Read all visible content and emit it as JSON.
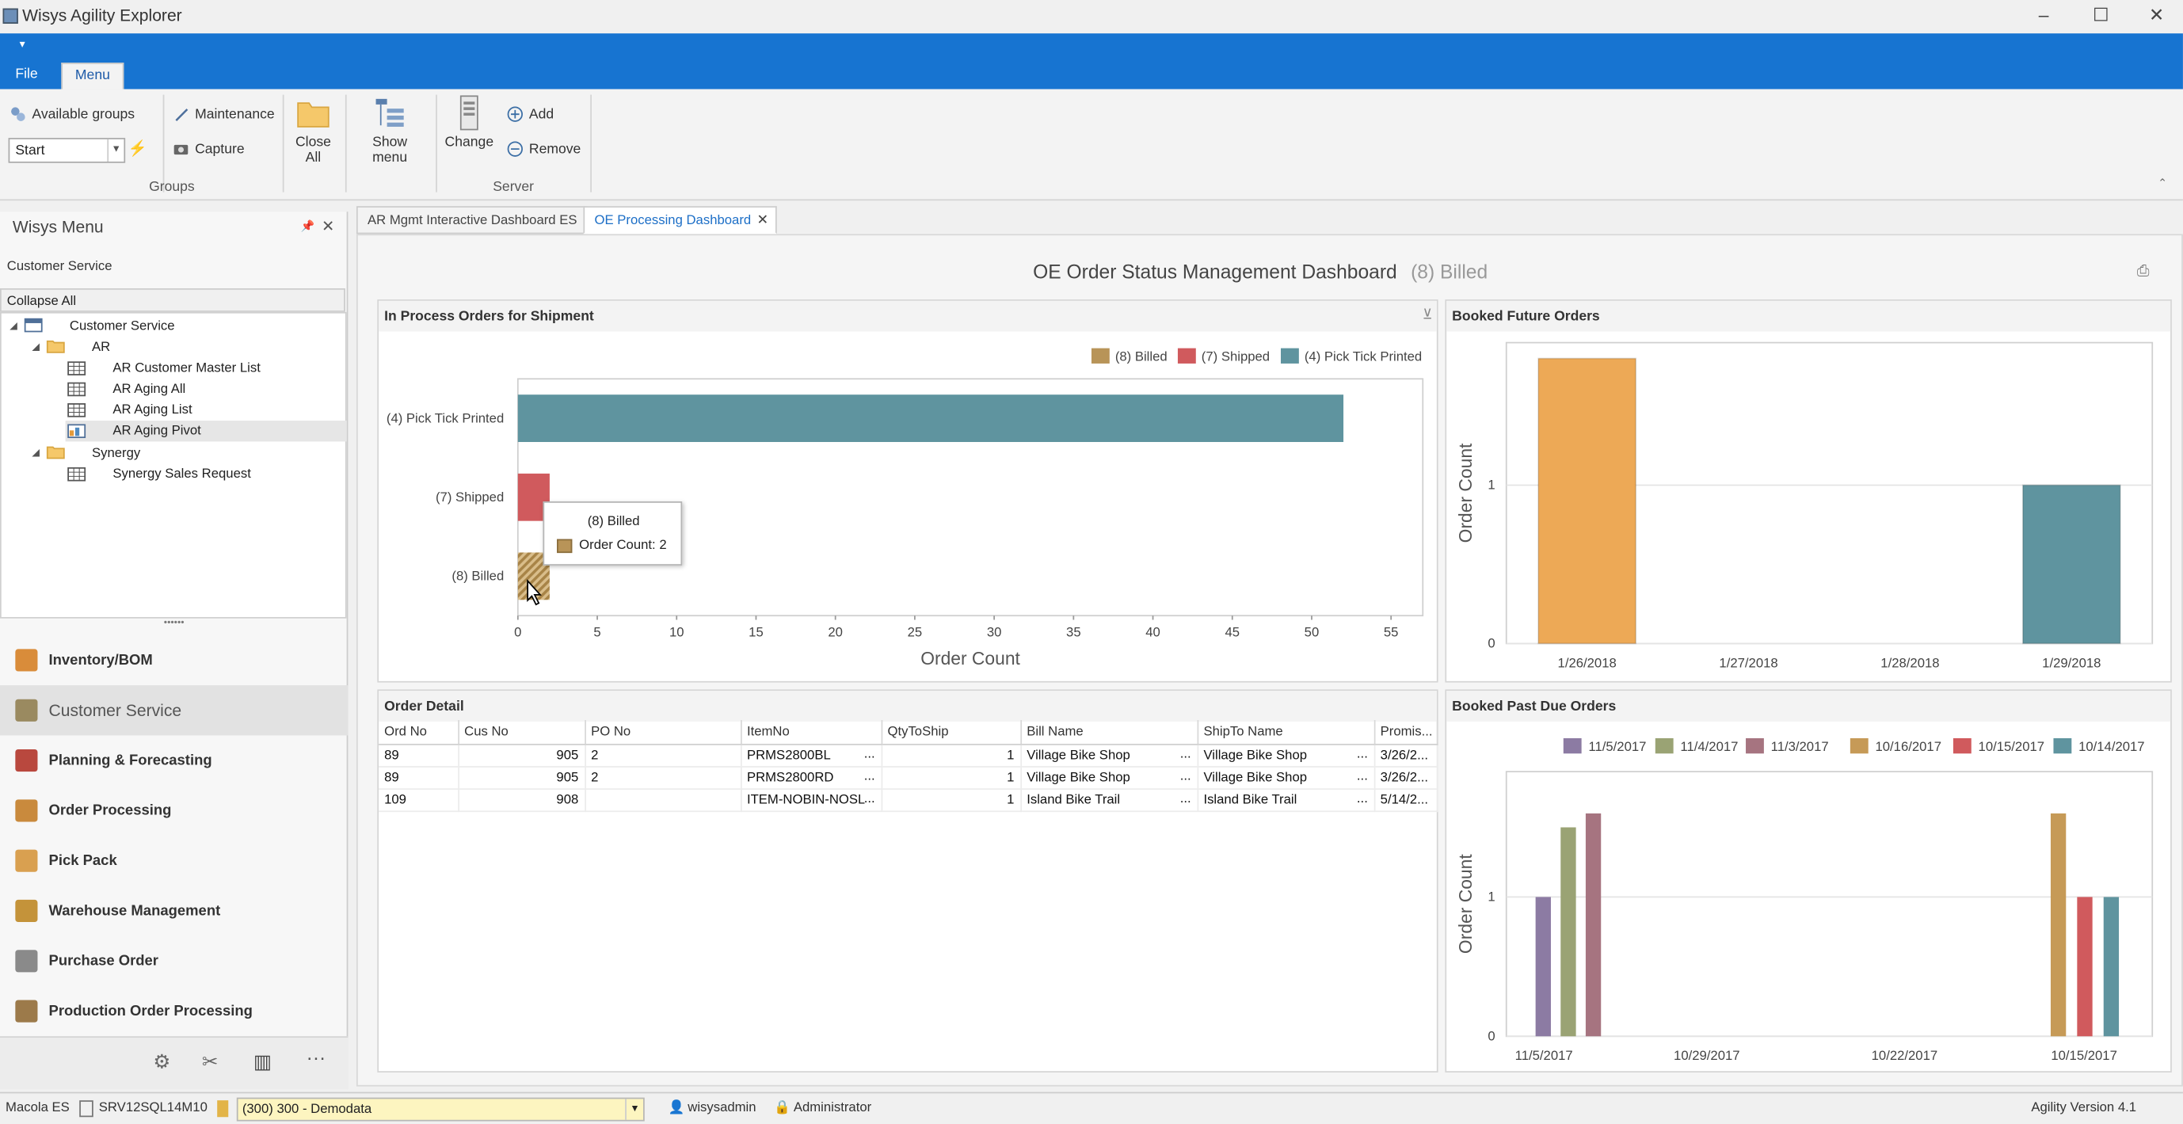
{
  "window": {
    "title": "Wisys Agility Explorer",
    "minimize": "–",
    "maximize": "☐",
    "close": "✕"
  },
  "ribbon": {
    "qat": "▾",
    "tabs": [
      "File",
      "Menu"
    ],
    "available_groups": "Available groups",
    "start_combo": "Start",
    "maintenance": "Maintenance",
    "capture": "Capture",
    "close_all": [
      "Close",
      "All"
    ],
    "show_menu": "Show menu",
    "change": "Change",
    "add": "Add",
    "remove": "Remove",
    "group_groups": "Groups",
    "group_server": "Server"
  },
  "wisys_menu": {
    "title": "Wisys Menu",
    "section": "Customer Service",
    "collapse_all": "Collapse All",
    "tree": [
      "Customer Service",
      "AR",
      "AR Customer Master List",
      "AR Aging All",
      "AR Aging List",
      "AR Aging Pivot",
      "Synergy",
      "Synergy Sales Request"
    ],
    "splitter": "••••••",
    "nav": [
      "Inventory/BOM",
      "Customer Service",
      "Planning & Forecasting",
      "Order Processing",
      "Pick Pack",
      "Warehouse Management",
      "Purchase Order",
      "Production Order Processing"
    ],
    "more": "···"
  },
  "doc_tabs": [
    "AR Mgmt Interactive Dashboard ES",
    "OE Processing Dashboard"
  ],
  "dashboard": {
    "title": "OE Order Status Management Dashboard",
    "filter": "(8) Billed"
  },
  "panels": {
    "in_process": "In Process Orders for Shipment",
    "booked_future": "Booked Future Orders",
    "order_detail": "Order Detail",
    "booked_past_due": "Booked Past Due Orders"
  },
  "chart_data": [
    {
      "type": "bar",
      "orientation": "horizontal",
      "categories": [
        "(4) Pick Tick Printed",
        "(7) Shipped",
        "(8) Billed"
      ],
      "values": [
        52,
        2,
        2
      ],
      "colors": [
        "#5f949f",
        "#d05a5d",
        "#b89458"
      ],
      "legend": [
        "(8) Billed",
        "(7) Shipped",
        "(4) Pick Tick Printed"
      ],
      "xlabel": "Order Count",
      "xlim": [
        0,
        57
      ],
      "xticks": [
        "0",
        "5",
        "10",
        "15",
        "20",
        "25",
        "30",
        "35",
        "40",
        "45",
        "50",
        "55"
      ],
      "tooltip": {
        "title": "(8) Billed",
        "text": "Order Count: 2"
      }
    },
    {
      "type": "bar",
      "categories": [
        "1/26/2018",
        "1/27/2018",
        "1/28/2018",
        "1/29/2018"
      ],
      "values": [
        1.8,
        0,
        0,
        1
      ],
      "colors": [
        "#eda956",
        "",
        "",
        "#5f949f"
      ],
      "ylabel": "Order Count",
      "yticks": [
        "0",
        "1"
      ],
      "ylim": [
        0,
        1.9
      ]
    },
    {
      "type": "bar",
      "legend": [
        "11/5/2017",
        "11/4/2017",
        "11/3/2017",
        "10/16/2017",
        "10/15/2017",
        "10/14/2017"
      ],
      "colors": [
        "#8c7ba3",
        "#9aa374",
        "#a67480",
        "#c69a57",
        "#d05a5d",
        "#5f949f"
      ],
      "values": [
        1,
        1.5,
        1.6,
        1.6,
        1,
        1
      ],
      "xticks": [
        "11/5/2017",
        "10/29/2017",
        "10/22/2017",
        "10/15/2017"
      ],
      "ylabel": "Order Count",
      "yticks": [
        "0",
        "1"
      ],
      "ylim": [
        0,
        1.9
      ]
    }
  ],
  "order_detail": {
    "columns": [
      "Ord No",
      "Cus No",
      "PO No",
      "ItemNo",
      "QtyToShip",
      "Bill Name",
      "ShipTo Name",
      "Promis..."
    ],
    "rows": [
      [
        "89",
        "905",
        "2",
        "PRMS2800BL",
        "1",
        "Village Bike Shop",
        "Village Bike Shop",
        "3/26/2..."
      ],
      [
        "89",
        "905",
        "2",
        "PRMS2800RD",
        "1",
        "Village Bike Shop",
        "Village Bike Shop",
        "3/26/2..."
      ],
      [
        "109",
        "908",
        "",
        "ITEM-NOBIN-NOSL",
        "1",
        "Island Bike Trail",
        "Island Bike Trail",
        "5/14/2..."
      ]
    ],
    "ellipsis": "..."
  },
  "status": {
    "erp": "Macola ES",
    "server": "SRV12SQL14M10",
    "company": "(300) 300 - Demodata",
    "user": "wisysadmin",
    "role": "Administrator",
    "version": "Agility Version 4.1"
  }
}
